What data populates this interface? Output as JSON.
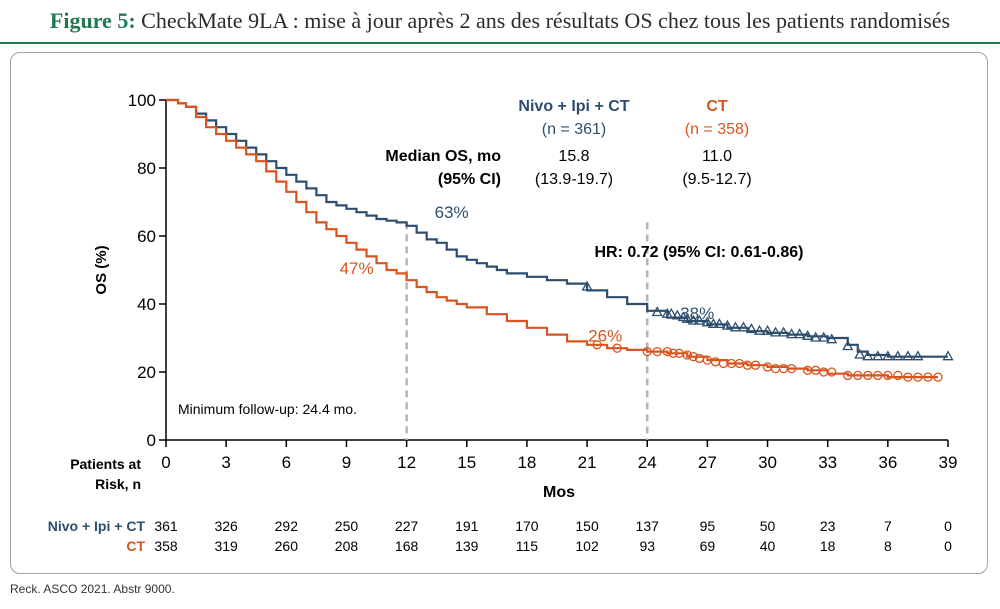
{
  "title": {
    "label": "Figure 5:",
    "text": " CheckMate 9LA : mise à jour après 2 ans des résultats OS chez tous les patients randomisés"
  },
  "source": "Reck. ASCO 2021. Abstr 9000.",
  "colors": {
    "nivo": "#2d4e6e",
    "ct": "#d9541e",
    "axis": "#000000",
    "dash": "#b5b5b5",
    "accent": "#1f7a4f"
  },
  "chart_data": {
    "type": "line",
    "subtype": "kaplan-meier",
    "ylabel": "OS (%)",
    "xlabel": "Mos",
    "xlim": [
      0,
      39
    ],
    "ylim": [
      0,
      100
    ],
    "xticks": [
      0,
      3,
      6,
      9,
      12,
      15,
      18,
      21,
      24,
      27,
      30,
      33,
      36,
      39
    ],
    "yticks": [
      0,
      20,
      40,
      60,
      80,
      100
    ],
    "series": [
      {
        "key": "nivo",
        "name": "Nivo + Ipi + CT",
        "n_label": "(n = 361)",
        "median": "15.8",
        "ci": "(13.9-19.7)",
        "points": [
          [
            0,
            100
          ],
          [
            0.6,
            99
          ],
          [
            1,
            98
          ],
          [
            1.5,
            96
          ],
          [
            2,
            94
          ],
          [
            2.5,
            92
          ],
          [
            3,
            90
          ],
          [
            3.5,
            88
          ],
          [
            4,
            86
          ],
          [
            4.5,
            84
          ],
          [
            5,
            82
          ],
          [
            5.5,
            80
          ],
          [
            6,
            78
          ],
          [
            6.5,
            76
          ],
          [
            7,
            74
          ],
          [
            7.5,
            72
          ],
          [
            8,
            70
          ],
          [
            8.5,
            69
          ],
          [
            9,
            68
          ],
          [
            9.5,
            67
          ],
          [
            10,
            66
          ],
          [
            10.5,
            65
          ],
          [
            11,
            64.5
          ],
          [
            11.5,
            64
          ],
          [
            12,
            63
          ],
          [
            12.5,
            61
          ],
          [
            13,
            59
          ],
          [
            13.5,
            58
          ],
          [
            14,
            56
          ],
          [
            14.5,
            54
          ],
          [
            15,
            53
          ],
          [
            15.5,
            52
          ],
          [
            16,
            51
          ],
          [
            16.5,
            50
          ],
          [
            17,
            49
          ],
          [
            18,
            48
          ],
          [
            19,
            47
          ],
          [
            20,
            46
          ],
          [
            21,
            44
          ],
          [
            22,
            42
          ],
          [
            23,
            40
          ],
          [
            24,
            38
          ],
          [
            25,
            36
          ],
          [
            26,
            35
          ],
          [
            27,
            34
          ],
          [
            28,
            33
          ],
          [
            29,
            32
          ],
          [
            30,
            31.5
          ],
          [
            31,
            31
          ],
          [
            32,
            30.5
          ],
          [
            33,
            30
          ],
          [
            34,
            28
          ],
          [
            34.5,
            26
          ],
          [
            35,
            25
          ],
          [
            36,
            24.5
          ],
          [
            39,
            24.5
          ]
        ],
        "censor": [
          [
            21,
            45
          ],
          [
            24.5,
            37.5
          ],
          [
            25,
            37
          ],
          [
            25.2,
            37
          ],
          [
            25.5,
            36.5
          ],
          [
            25.8,
            36
          ],
          [
            26,
            35.5
          ],
          [
            26.3,
            35
          ],
          [
            26.6,
            35
          ],
          [
            27,
            34.5
          ],
          [
            27.3,
            34
          ],
          [
            27.6,
            34
          ],
          [
            28,
            33.5
          ],
          [
            28.4,
            33
          ],
          [
            28.8,
            33
          ],
          [
            29.2,
            32.5
          ],
          [
            29.6,
            32
          ],
          [
            30,
            32
          ],
          [
            30.4,
            31.5
          ],
          [
            30.8,
            31.5
          ],
          [
            31.2,
            31
          ],
          [
            31.6,
            31
          ],
          [
            32,
            30.5
          ],
          [
            32.4,
            30
          ],
          [
            32.8,
            30
          ],
          [
            33.2,
            29.5
          ],
          [
            34,
            27.5
          ],
          [
            34.6,
            25
          ],
          [
            35,
            24.5
          ],
          [
            35.5,
            24.5
          ],
          [
            36,
            24.5
          ],
          [
            36.5,
            24.5
          ],
          [
            37,
            24.5
          ],
          [
            37.5,
            24.5
          ],
          [
            39,
            24.5
          ]
        ],
        "landmarks": [
          {
            "x": 12,
            "y": 63,
            "label": "63%"
          },
          {
            "x": 24,
            "y": 38,
            "label": "38%"
          }
        ],
        "risk": [
          361,
          326,
          292,
          250,
          227,
          191,
          170,
          150,
          137,
          95,
          50,
          23,
          7,
          0
        ]
      },
      {
        "key": "ct",
        "name": "CT",
        "n_label": "(n = 358)",
        "median": "11.0",
        "ci": "(9.5-12.7)",
        "points": [
          [
            0,
            100
          ],
          [
            0.6,
            99
          ],
          [
            1,
            98
          ],
          [
            1.5,
            95
          ],
          [
            2,
            92
          ],
          [
            2.5,
            90
          ],
          [
            3,
            88
          ],
          [
            3.5,
            86
          ],
          [
            4,
            84
          ],
          [
            4.5,
            82
          ],
          [
            5,
            79
          ],
          [
            5.5,
            76
          ],
          [
            6,
            73
          ],
          [
            6.5,
            70
          ],
          [
            7,
            67
          ],
          [
            7.5,
            64
          ],
          [
            8,
            62
          ],
          [
            8.5,
            60
          ],
          [
            9,
            58
          ],
          [
            9.5,
            56
          ],
          [
            10,
            54
          ],
          [
            10.5,
            52
          ],
          [
            11,
            50
          ],
          [
            11.5,
            49
          ],
          [
            12,
            47
          ],
          [
            12.5,
            45
          ],
          [
            13,
            43.5
          ],
          [
            13.5,
            42
          ],
          [
            14,
            41
          ],
          [
            14.5,
            40
          ],
          [
            15,
            39
          ],
          [
            16,
            37
          ],
          [
            17,
            35
          ],
          [
            18,
            33
          ],
          [
            19,
            31
          ],
          [
            20,
            29
          ],
          [
            21,
            28
          ],
          [
            22,
            27
          ],
          [
            23,
            26.5
          ],
          [
            24,
            26
          ],
          [
            25,
            25.5
          ],
          [
            26,
            24.5
          ],
          [
            27,
            23.5
          ],
          [
            28,
            22.5
          ],
          [
            29,
            22
          ],
          [
            30,
            21.5
          ],
          [
            31,
            21
          ],
          [
            32,
            20.5
          ],
          [
            33,
            19.5
          ],
          [
            34,
            19
          ],
          [
            35,
            19
          ],
          [
            36,
            18.5
          ],
          [
            38.5,
            18.5
          ]
        ],
        "censor": [
          [
            21.5,
            28
          ],
          [
            22.5,
            27
          ],
          [
            24,
            26
          ],
          [
            24.5,
            26
          ],
          [
            25,
            26
          ],
          [
            25.3,
            25.5
          ],
          [
            25.6,
            25.5
          ],
          [
            26,
            25
          ],
          [
            26.3,
            24.5
          ],
          [
            26.6,
            24
          ],
          [
            27,
            23.5
          ],
          [
            27.4,
            23
          ],
          [
            27.8,
            22.5
          ],
          [
            28.2,
            22.5
          ],
          [
            28.6,
            22.5
          ],
          [
            29,
            22
          ],
          [
            29.4,
            22
          ],
          [
            30,
            21.5
          ],
          [
            30.4,
            21
          ],
          [
            30.8,
            21
          ],
          [
            31.2,
            21
          ],
          [
            32,
            20.5
          ],
          [
            32.4,
            20.5
          ],
          [
            32.8,
            20
          ],
          [
            33.2,
            20
          ],
          [
            34,
            19
          ],
          [
            34.5,
            19
          ],
          [
            35,
            19
          ],
          [
            35.5,
            19
          ],
          [
            36,
            19
          ],
          [
            36.5,
            19
          ],
          [
            37,
            18.5
          ],
          [
            37.5,
            18.5
          ],
          [
            38,
            18.5
          ],
          [
            38.5,
            18.5
          ]
        ],
        "landmarks": [
          {
            "x": 12,
            "y": 47,
            "label": "47%"
          },
          {
            "x": 24,
            "y": 26,
            "label": "26%"
          }
        ],
        "risk": [
          358,
          319,
          260,
          208,
          168,
          139,
          115,
          102,
          93,
          69,
          40,
          18,
          8,
          0
        ]
      }
    ],
    "median_label": "Median OS, mo",
    "ci_label": "(95% CI)",
    "hr_text": "HR: 0.72 (95% CI: 0.61-0.86)",
    "followup_text": "Minimum follow-up: 24.4 mo.",
    "risk_header_line1": "Patients at",
    "risk_header_line2": "Risk, n",
    "landmark_lines": [
      12,
      24
    ]
  }
}
